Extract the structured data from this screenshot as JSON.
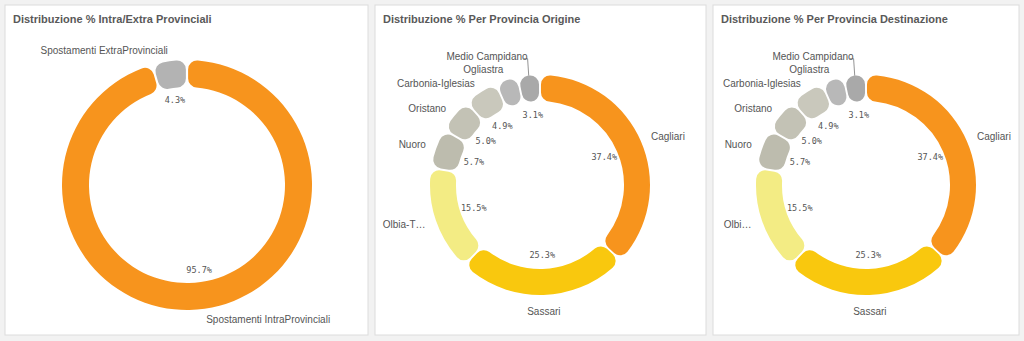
{
  "chart_data": [
    {
      "type": "donut",
      "title": "Distribuzione % Intra/Extra Provinciali",
      "categories": [
        "Spostamenti IntraProvinciali",
        "Spostamenti ExtraProvinciali"
      ],
      "values": [
        95.7,
        4.3
      ],
      "value_labels": [
        "95.7%",
        "4.3%"
      ],
      "colors": [
        "#f7941d",
        "#b3b3b3"
      ],
      "data_labels": true
    },
    {
      "type": "donut",
      "title": "Distribuzione % Per Provincia Origine",
      "categories": [
        "Cagliari",
        "Sassari",
        "Olbia-T…",
        "Nuoro",
        "Oristano",
        "Carbonia-Iglesias",
        "Ogliastra",
        "Medio Campidano"
      ],
      "values": [
        37.4,
        25.3,
        15.5,
        5.7,
        5.0,
        4.9,
        3.1,
        3.1
      ],
      "value_labels": [
        "37.4%",
        "25.3%",
        "15.5%",
        "5.7%",
        "5.0%",
        "4.9%",
        null,
        "3.1%"
      ],
      "colors": [
        "#f7941d",
        "#f9c80e",
        "#f3ec84",
        "#bdbcae",
        "#c3c2b5",
        "#c9c8bc",
        "#b8b8b8",
        "#a9a9a9"
      ],
      "data_labels": true
    },
    {
      "type": "donut",
      "title": "Distribuzione % Per Provincia Destinazione",
      "categories": [
        "Cagliari",
        "Sassari",
        "Olbi…",
        "Nuoro",
        "Oristano",
        "Carbonia-Iglesias",
        "Ogliastra",
        "Medio Campidano"
      ],
      "values": [
        37.4,
        25.3,
        15.5,
        5.7,
        5.0,
        4.9,
        3.1,
        3.1
      ],
      "value_labels": [
        "37.4%",
        "25.3%",
        "15.5%",
        "5.7%",
        "5.0%",
        "4.9%",
        null,
        "3.1%"
      ],
      "colors": [
        "#f7941d",
        "#f9c80e",
        "#f3ec84",
        "#bdbcae",
        "#c3c2b5",
        "#c9c8bc",
        "#b8b8b8",
        "#a9a9a9"
      ],
      "data_labels": true
    }
  ]
}
